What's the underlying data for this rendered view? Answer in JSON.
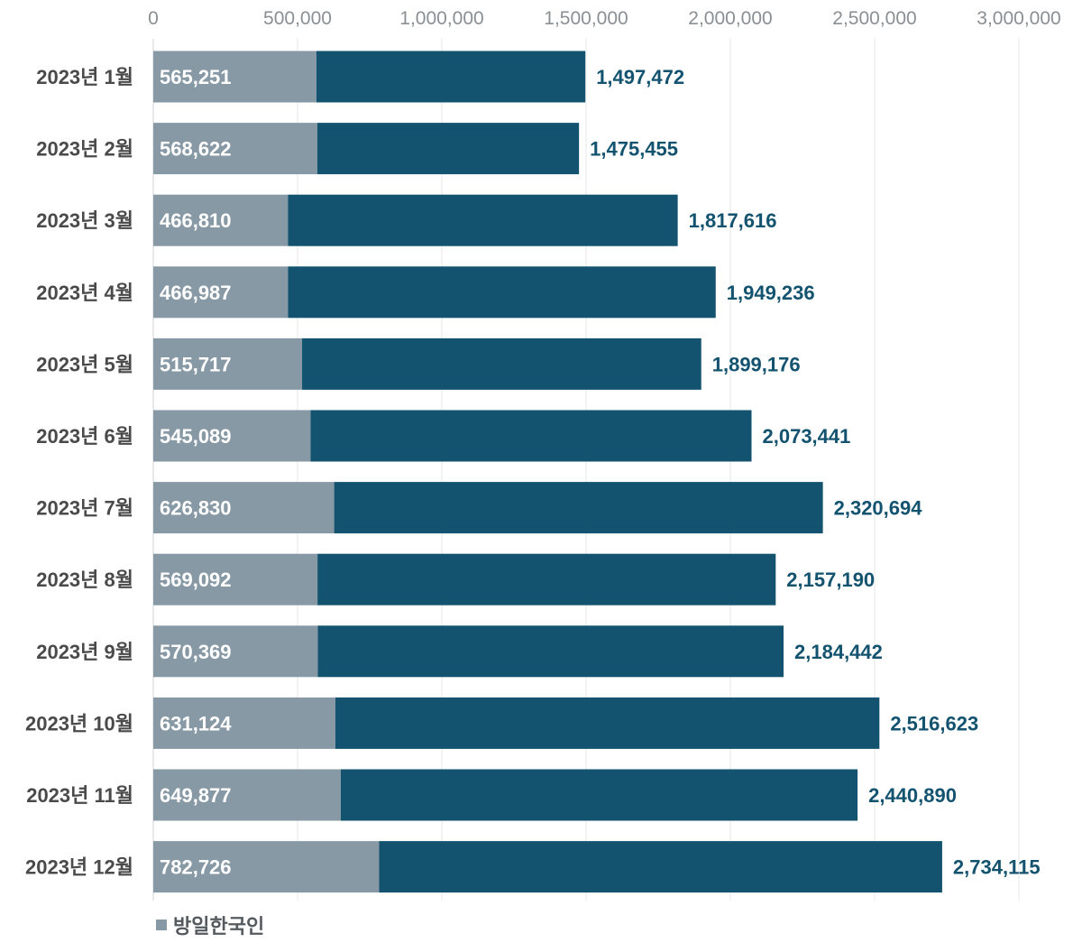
{
  "chart_data": {
    "type": "bar",
    "orientation": "horizontal",
    "stacked": true,
    "categories": [
      "2023년 1월",
      "2023년 2월",
      "2023년 3월",
      "2023년 4월",
      "2023년 5월",
      "2023년 6월",
      "2023년 7월",
      "2023년 8월",
      "2023년 9월",
      "2023년 10월",
      "2023년 11월",
      "2023년 12월"
    ],
    "series": [
      {
        "name": "방일한국인",
        "color": "#8899a6",
        "values": [
          565251,
          568622,
          466810,
          466987,
          515717,
          545089,
          626830,
          569092,
          570369,
          631124,
          649877,
          782726
        ],
        "labels": [
          "565,251",
          "568,622",
          "466,810",
          "466,987",
          "515,717",
          "545,089",
          "626,830",
          "569,092",
          "570,369",
          "631,124",
          "649,877",
          "782,726"
        ]
      },
      {
        "color": "#13536f",
        "values": [
          932221,
          906833,
          1350806,
          1482249,
          1383459,
          1528352,
          1693864,
          1588098,
          1614073,
          1885499,
          1791013,
          1951389
        ]
      }
    ],
    "totals": [
      1497472,
      1475455,
      1817616,
      1949236,
      1899176,
      2073441,
      2320694,
      2157190,
      2184442,
      2516623,
      2440890,
      2734115
    ],
    "total_labels": [
      "1,497,472",
      "1,475,455",
      "1,817,616",
      "1,949,236",
      "1,899,176",
      "2,073,441",
      "2,320,694",
      "2,157,190",
      "2,184,442",
      "2,516,623",
      "2,440,890",
      "2,734,115"
    ],
    "xlim": [
      0,
      3000000
    ],
    "ticks": [
      0,
      500000,
      1000000,
      1500000,
      2000000,
      2500000,
      3000000
    ],
    "tick_labels": [
      "0",
      "500,000",
      "1,000,000",
      "1,500,000",
      "2,000,000",
      "2,500,000",
      "3,000,000"
    ],
    "grid": true,
    "axis_position": "top",
    "legend_position": "bottom-left"
  }
}
